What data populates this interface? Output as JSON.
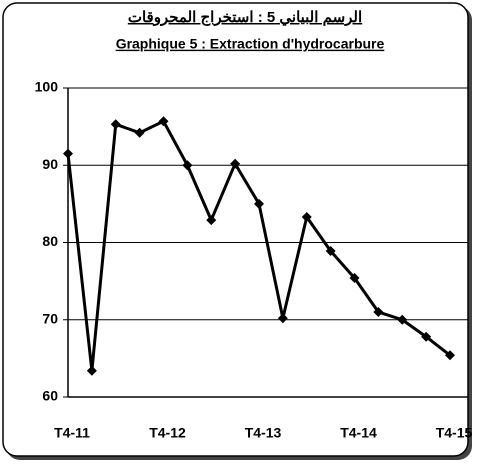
{
  "chart_data": {
    "type": "line",
    "title": "الرسم البياني 5 : استخراج المحروقات",
    "subtitle": "Graphique 5 : Extraction d'hydrocarbure",
    "categories": [
      "T4-11",
      null,
      null,
      null,
      "T4-12",
      null,
      null,
      null,
      "T4-13",
      null,
      null,
      null,
      "T4-14",
      null,
      null,
      null,
      "T4-15"
    ],
    "series": [
      {
        "name": "Extraction d'hydrocarbure",
        "color": "#000000",
        "values": [
          91.5,
          63.4,
          95.3,
          94.2,
          95.7,
          90.0,
          82.9,
          90.2,
          85.0,
          70.2,
          83.3,
          78.9,
          75.4,
          71.0,
          70.0,
          67.8,
          65.4
        ]
      }
    ],
    "ylim": [
      60,
      100
    ],
    "yticks": [
      60,
      70,
      80,
      90,
      100
    ],
    "grid": true
  }
}
